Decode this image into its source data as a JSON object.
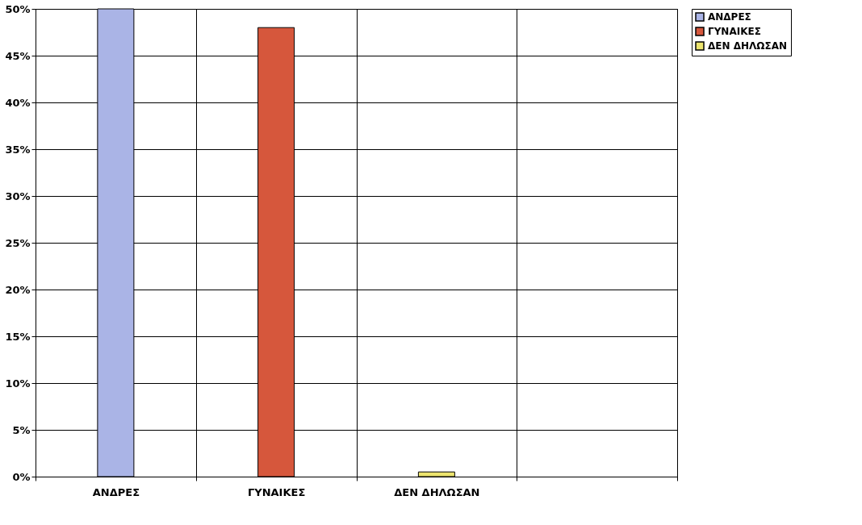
{
  "chart_data": {
    "type": "bar",
    "categories": [
      "ΑΝΔΡΕΣ",
      "ΓΥΝΑΙΚΕΣ",
      "ΔΕΝ ΔΗΛΩΣΑΝ",
      null
    ],
    "series": [
      {
        "name": "ΑΝΔΡΕΣ",
        "color": "#aab4e6",
        "values": [
          50,
          null,
          null,
          null
        ]
      },
      {
        "name": "ΓΥΝΑΙΚΕΣ",
        "color": "#d6573c",
        "values": [
          null,
          48,
          null,
          null
        ]
      },
      {
        "name": "ΔΕΝ ΔΗΛΩΣΑΝ",
        "color": "#ece46e",
        "values": [
          null,
          null,
          0.5,
          null
        ]
      }
    ],
    "ylim": [
      0,
      50
    ],
    "yticks": [
      {
        "value": 0,
        "label": "0%"
      },
      {
        "value": 5,
        "label": "5%"
      },
      {
        "value": 10,
        "label": "10%"
      },
      {
        "value": 15,
        "label": "15%"
      },
      {
        "value": 20,
        "label": "20%"
      },
      {
        "value": 25,
        "label": "25%"
      },
      {
        "value": 30,
        "label": "30%"
      },
      {
        "value": 35,
        "label": "35%"
      },
      {
        "value": 40,
        "label": "40%"
      },
      {
        "value": 45,
        "label": "45%"
      },
      {
        "value": 50,
        "label": "50%"
      }
    ],
    "grid": true,
    "legend": "right"
  }
}
